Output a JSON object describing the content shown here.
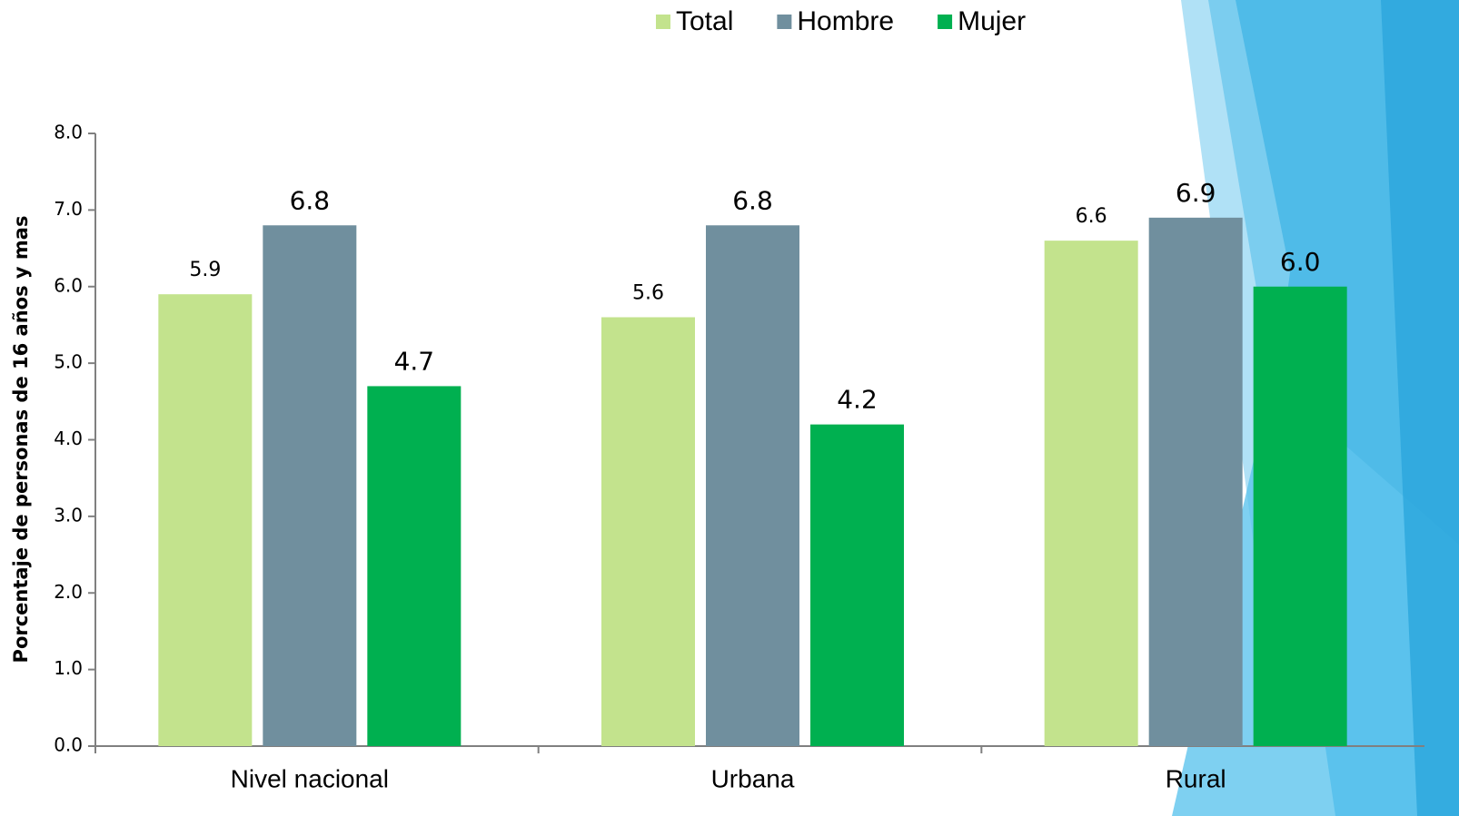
{
  "chart_data": {
    "type": "bar",
    "y_label": "Porcentaje de personas de 16 años y mas",
    "categories": [
      "Nivel nacional",
      "Urbana",
      "Rural"
    ],
    "series": [
      {
        "name": "Total",
        "color": "#c3e38d",
        "values": [
          5.9,
          5.6,
          6.6
        ],
        "value_labels": [
          "5.9",
          "5.6",
          "6.6"
        ]
      },
      {
        "name": "Hombre",
        "color": "#708f9e",
        "values": [
          6.8,
          6.8,
          6.9
        ],
        "value_labels": [
          "6.8",
          "6.8",
          "6.9"
        ]
      },
      {
        "name": "Mujer",
        "color": "#00b050",
        "values": [
          4.7,
          4.2,
          6.0
        ],
        "value_labels": [
          "4.7",
          "4.2",
          "6.0"
        ]
      }
    ],
    "ylim": [
      0,
      8
    ],
    "yticks": [
      {
        "value": 0,
        "label": "0.0"
      },
      {
        "value": 1,
        "label": "1.0"
      },
      {
        "value": 2,
        "label": "2.0"
      },
      {
        "value": 3,
        "label": "3.0"
      },
      {
        "value": 4,
        "label": "4.0"
      },
      {
        "value": 5,
        "label": "5.0"
      },
      {
        "value": 6,
        "label": "6.0"
      },
      {
        "value": 7,
        "label": "7.0"
      },
      {
        "value": 8,
        "label": "8.0"
      }
    ],
    "legend_position": "top"
  }
}
